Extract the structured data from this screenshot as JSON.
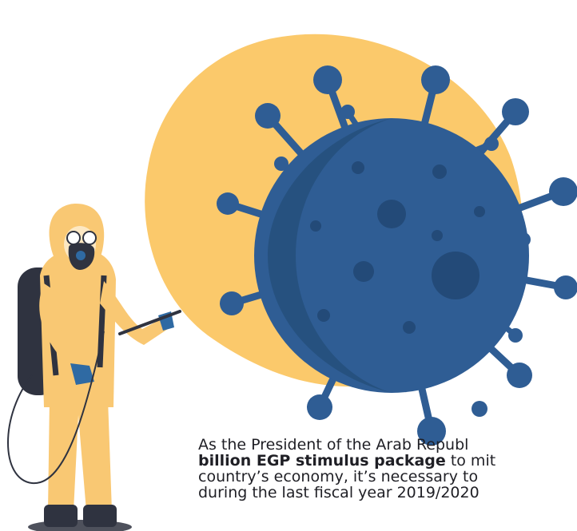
{
  "colors": {
    "blob": "#fbc96b",
    "virus": "#2f5d94",
    "virus_dark": "#234a78",
    "suit": "#f9c873",
    "dark": "#2f3340",
    "glove": "#2f6aa3",
    "text": "#1f1f25"
  },
  "icons": {
    "virus": "coronavirus-icon",
    "worker": "hazmat-worker-icon"
  },
  "caption": {
    "line1": "As the President of the Arab Republ",
    "line2_bold": "billion EGP stimulus package",
    "line2_rest": " to mit",
    "line3": "country’s economy, it’s necessary to",
    "line4": "during the last fiscal year 2019/2020"
  }
}
